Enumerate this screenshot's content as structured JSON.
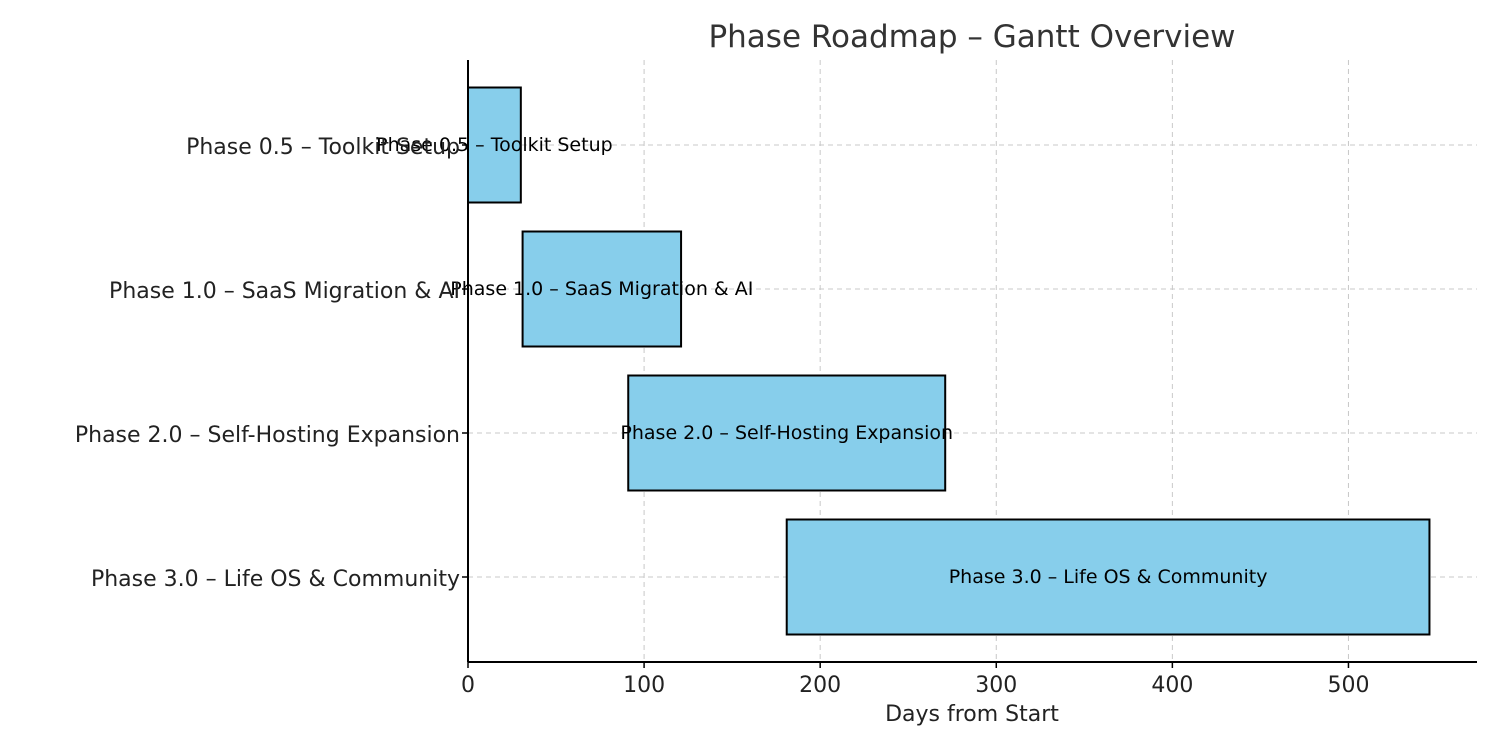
{
  "chart_data": {
    "type": "bar",
    "orientation": "horizontal",
    "title": "Phase Roadmap – Gantt Overview",
    "xlabel": "Days from Start",
    "ylabel": "",
    "xlim": [
      0,
      573
    ],
    "xticks": [
      0,
      100,
      200,
      300,
      400,
      500
    ],
    "grid": true,
    "bar_color": "#87ceeb",
    "bar_edge_color": "#000000",
    "categories": [
      "Phase 0.5 – Toolkit Setup",
      "Phase 1.0 – SaaS Migration & AI",
      "Phase 2.0 – Self-Hosting Expansion",
      "Phase 3.0 – Life OS & Community"
    ],
    "start": [
      0,
      31,
      91,
      181
    ],
    "duration": [
      30,
      90,
      180,
      365
    ],
    "bar_labels": [
      "Phase 0.5 – Toolkit Setup",
      "Phase 1.0 – SaaS Migration & AI",
      "Phase 2.0 – Self-Hosting Expansion",
      "Phase 3.0 – Life OS & Community"
    ]
  }
}
